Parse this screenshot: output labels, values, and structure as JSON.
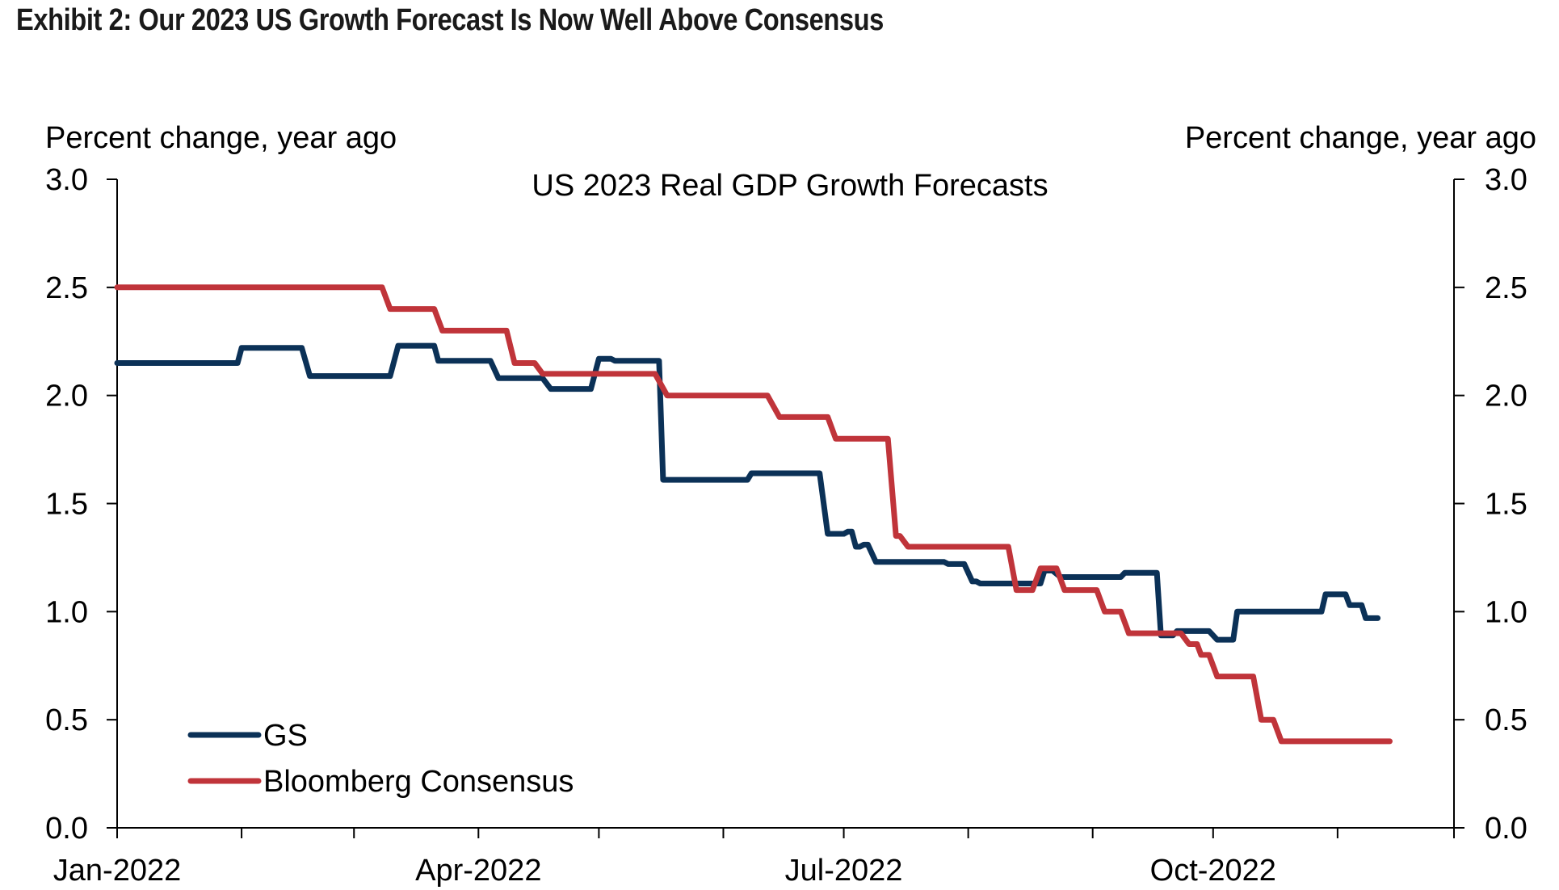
{
  "exhibit_title": "Exhibit 2: Our 2023 US Growth Forecast Is Now Well Above Consensus",
  "chart_data": {
    "type": "line",
    "title": "US 2023 Real GDP Growth Forecasts",
    "ylabel_left": "Percent change, year ago",
    "ylabel_right": "Percent change, year ago",
    "ylim": [
      0,
      3
    ],
    "yticks": [
      "0.0",
      "0.5",
      "1.0",
      "1.5",
      "2.0",
      "2.5",
      "3.0"
    ],
    "xlim": [
      "2022-01-01",
      "2022-11-30"
    ],
    "xticks": [
      {
        "date": "2022-01-01",
        "label": "Jan-2022"
      },
      {
        "date": "2022-04-01",
        "label": "Apr-2022"
      },
      {
        "date": "2022-07-01",
        "label": "Jul-2022"
      },
      {
        "date": "2022-10-01",
        "label": "Oct-2022"
      }
    ],
    "legend_position": "bottom-left",
    "grid": false,
    "series": [
      {
        "name": "GS",
        "color": "#0b3157",
        "step": true,
        "points": [
          [
            "2022-01-01",
            2.15
          ],
          [
            "2022-01-31",
            2.15
          ],
          [
            "2022-02-01",
            2.22
          ],
          [
            "2022-02-16",
            2.22
          ],
          [
            "2022-02-18",
            2.09
          ],
          [
            "2022-03-10",
            2.09
          ],
          [
            "2022-03-12",
            2.23
          ],
          [
            "2022-03-21",
            2.23
          ],
          [
            "2022-03-22",
            2.16
          ],
          [
            "2022-04-04",
            2.16
          ],
          [
            "2022-04-06",
            2.08
          ],
          [
            "2022-04-17",
            2.08
          ],
          [
            "2022-04-19",
            2.03
          ],
          [
            "2022-04-29",
            2.03
          ],
          [
            "2022-05-01",
            2.17
          ],
          [
            "2022-05-04",
            2.17
          ],
          [
            "2022-05-05",
            2.16
          ],
          [
            "2022-05-16",
            2.16
          ],
          [
            "2022-05-17",
            1.61
          ],
          [
            "2022-06-07",
            1.61
          ],
          [
            "2022-06-08",
            1.64
          ],
          [
            "2022-06-25",
            1.64
          ],
          [
            "2022-06-27",
            1.36
          ],
          [
            "2022-07-01",
            1.36
          ],
          [
            "2022-07-02",
            1.37
          ],
          [
            "2022-07-03",
            1.37
          ],
          [
            "2022-07-04",
            1.3
          ],
          [
            "2022-07-05",
            1.3
          ],
          [
            "2022-07-06",
            1.31
          ],
          [
            "2022-07-07",
            1.31
          ],
          [
            "2022-07-09",
            1.23
          ],
          [
            "2022-07-26",
            1.23
          ],
          [
            "2022-07-27",
            1.22
          ],
          [
            "2022-07-31",
            1.22
          ],
          [
            "2022-08-02",
            1.14
          ],
          [
            "2022-08-03",
            1.14
          ],
          [
            "2022-08-04",
            1.13
          ],
          [
            "2022-08-19",
            1.13
          ],
          [
            "2022-08-20",
            1.19
          ],
          [
            "2022-08-22",
            1.19
          ],
          [
            "2022-08-24",
            1.16
          ],
          [
            "2022-09-08",
            1.16
          ],
          [
            "2022-09-09",
            1.18
          ],
          [
            "2022-09-17",
            1.18
          ],
          [
            "2022-09-18",
            0.89
          ],
          [
            "2022-09-21",
            0.89
          ],
          [
            "2022-09-22",
            0.91
          ],
          [
            "2022-09-30",
            0.91
          ],
          [
            "2022-10-02",
            0.87
          ],
          [
            "2022-10-06",
            0.87
          ],
          [
            "2022-10-07",
            1.0
          ],
          [
            "2022-10-28",
            1.0
          ],
          [
            "2022-10-29",
            1.08
          ],
          [
            "2022-11-03",
            1.08
          ],
          [
            "2022-11-04",
            1.03
          ],
          [
            "2022-11-07",
            1.03
          ],
          [
            "2022-11-08",
            0.97
          ],
          [
            "2022-11-11",
            0.97
          ]
        ]
      },
      {
        "name": "Bloomberg Consensus",
        "color": "#c0343a",
        "step": true,
        "points": [
          [
            "2022-01-01",
            2.5
          ],
          [
            "2022-03-08",
            2.5
          ],
          [
            "2022-03-10",
            2.4
          ],
          [
            "2022-03-21",
            2.4
          ],
          [
            "2022-03-23",
            2.3
          ],
          [
            "2022-04-08",
            2.3
          ],
          [
            "2022-04-10",
            2.15
          ],
          [
            "2022-04-15",
            2.15
          ],
          [
            "2022-04-17",
            2.1
          ],
          [
            "2022-05-15",
            2.1
          ],
          [
            "2022-05-18",
            2.0
          ],
          [
            "2022-06-12",
            2.0
          ],
          [
            "2022-06-15",
            1.9
          ],
          [
            "2022-06-27",
            1.9
          ],
          [
            "2022-06-29",
            1.8
          ],
          [
            "2022-07-12",
            1.8
          ],
          [
            "2022-07-14",
            1.35
          ],
          [
            "2022-07-15",
            1.35
          ],
          [
            "2022-07-17",
            1.3
          ],
          [
            "2022-08-11",
            1.3
          ],
          [
            "2022-08-13",
            1.1
          ],
          [
            "2022-08-17",
            1.1
          ],
          [
            "2022-08-19",
            1.2
          ],
          [
            "2022-08-23",
            1.2
          ],
          [
            "2022-08-25",
            1.1
          ],
          [
            "2022-09-02",
            1.1
          ],
          [
            "2022-09-04",
            1.0
          ],
          [
            "2022-09-08",
            1.0
          ],
          [
            "2022-09-10",
            0.9
          ],
          [
            "2022-09-23",
            0.9
          ],
          [
            "2022-09-25",
            0.85
          ],
          [
            "2022-09-27",
            0.85
          ],
          [
            "2022-09-28",
            0.8
          ],
          [
            "2022-09-30",
            0.8
          ],
          [
            "2022-10-02",
            0.7
          ],
          [
            "2022-10-11",
            0.7
          ],
          [
            "2022-10-13",
            0.5
          ],
          [
            "2022-10-16",
            0.5
          ],
          [
            "2022-10-18",
            0.4
          ],
          [
            "2022-11-14",
            0.4
          ]
        ]
      }
    ]
  }
}
